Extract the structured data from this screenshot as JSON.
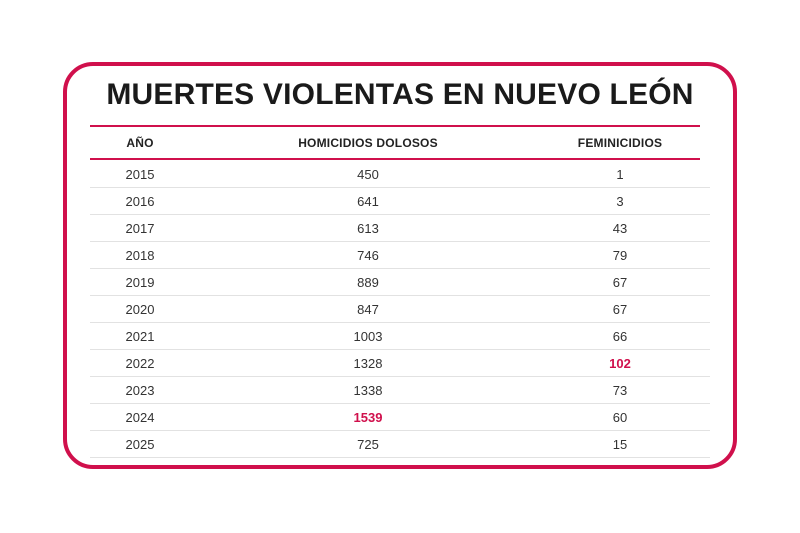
{
  "chart_data": {
    "type": "table",
    "title": "MUERTES VIOLENTAS EN NUEVO LEÓN",
    "columns": [
      "AÑO",
      "HOMICIDIOS DOLOSOS",
      "FEMINICIDIOS"
    ],
    "rows": [
      {
        "year": "2015",
        "homicidios": "450",
        "feminicidios": "1"
      },
      {
        "year": "2016",
        "homicidios": "641",
        "feminicidios": "3"
      },
      {
        "year": "2017",
        "homicidios": "613",
        "feminicidios": "43"
      },
      {
        "year": "2018",
        "homicidios": "746",
        "feminicidios": "79"
      },
      {
        "year": "2019",
        "homicidios": "889",
        "feminicidios": "67"
      },
      {
        "year": "2020",
        "homicidios": "847",
        "feminicidios": "67"
      },
      {
        "year": "2021",
        "homicidios": "1003",
        "feminicidios": "66"
      },
      {
        "year": "2022",
        "homicidios": "1328",
        "feminicidios": "102"
      },
      {
        "year": "2023",
        "homicidios": "1338",
        "feminicidios": "73"
      },
      {
        "year": "2024",
        "homicidios": "1539",
        "feminicidios": "60"
      },
      {
        "year": "2025",
        "homicidios": "725",
        "feminicidios": "15"
      }
    ],
    "highlights": {
      "homicidios_max_year": "2024",
      "feminicidios_max_year": "2022"
    },
    "colors": {
      "accent": "#d0104c",
      "text": "#333333"
    }
  }
}
